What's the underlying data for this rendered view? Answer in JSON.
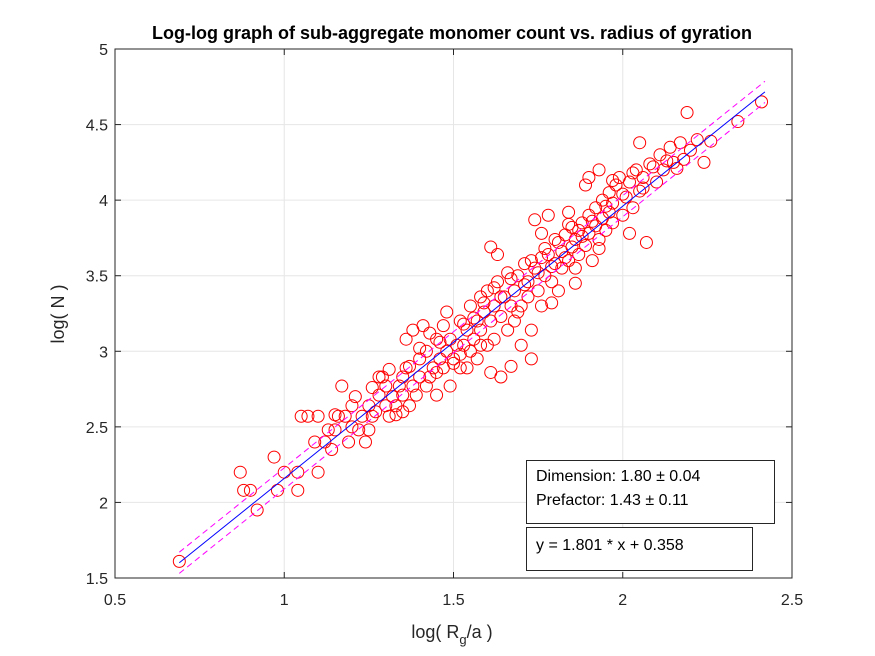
{
  "chart_data": {
    "type": "scatter",
    "title": "Log-log graph of sub-aggregate monomer count vs. radius of gyration",
    "xlabel": {
      "prefix": "log( R",
      "subscript": "g",
      "suffix": "/a )"
    },
    "ylabel": "log( N )",
    "xlim": [
      0.5,
      2.5
    ],
    "ylim": [
      1.5,
      5
    ],
    "xticks": [
      0.5,
      1,
      1.5,
      2,
      2.5
    ],
    "xtick_labels": [
      "0.5",
      "1",
      "1.5",
      "2",
      "2.5"
    ],
    "yticks": [
      1.5,
      2,
      2.5,
      3,
      3.5,
      4,
      4.5,
      5
    ],
    "ytick_labels": [
      "1.5",
      "2",
      "2.5",
      "3",
      "3.5",
      "4",
      "4.5",
      "5"
    ],
    "grid": true,
    "colors": {
      "points": "#ff0000",
      "fit": "#0000ff",
      "bounds": "#ff00ff",
      "axes": "#262626",
      "grid": "#e6e6e6"
    },
    "fit": {
      "slope": 1.801,
      "intercept": 0.358,
      "x_range": [
        0.69,
        2.42
      ],
      "bound_offset": 0.07
    },
    "series": [
      {
        "marker": "open-circle",
        "points": [
          [
            0.69,
            1.61
          ],
          [
            0.87,
            2.2
          ],
          [
            0.88,
            2.08
          ],
          [
            0.9,
            2.08
          ],
          [
            0.92,
            1.95
          ],
          [
            0.97,
            2.3
          ],
          [
            0.98,
            2.08
          ],
          [
            1.0,
            2.2
          ],
          [
            1.04,
            2.08
          ],
          [
            1.04,
            2.2
          ],
          [
            1.05,
            2.57
          ],
          [
            1.07,
            2.57
          ],
          [
            1.09,
            2.4
          ],
          [
            1.1,
            2.57
          ],
          [
            1.1,
            2.2
          ],
          [
            1.12,
            2.4
          ],
          [
            1.13,
            2.48
          ],
          [
            1.14,
            2.35
          ],
          [
            1.15,
            2.48
          ],
          [
            1.16,
            2.57
          ],
          [
            1.17,
            2.77
          ],
          [
            1.18,
            2.57
          ],
          [
            1.19,
            2.4
          ],
          [
            1.2,
            2.64
          ],
          [
            1.21,
            2.7
          ],
          [
            1.22,
            2.48
          ],
          [
            1.23,
            2.57
          ],
          [
            1.24,
            2.4
          ],
          [
            1.25,
            2.64
          ],
          [
            1.25,
            2.48
          ],
          [
            1.26,
            2.57
          ],
          [
            1.27,
            2.6
          ],
          [
            1.28,
            2.71
          ],
          [
            1.28,
            2.83
          ],
          [
            1.29,
            2.83
          ],
          [
            1.3,
            2.64
          ],
          [
            1.3,
            2.77
          ],
          [
            1.31,
            2.57
          ],
          [
            1.32,
            2.7
          ],
          [
            1.33,
            2.64
          ],
          [
            1.34,
            2.77
          ],
          [
            1.35,
            2.71
          ],
          [
            1.35,
            2.83
          ],
          [
            1.36,
            2.89
          ],
          [
            1.36,
            3.08
          ],
          [
            1.37,
            2.64
          ],
          [
            1.38,
            2.77
          ],
          [
            1.38,
            3.14
          ],
          [
            1.39,
            2.71
          ],
          [
            1.4,
            2.83
          ],
          [
            1.4,
            2.95
          ],
          [
            1.41,
            3.17
          ],
          [
            1.42,
            2.77
          ],
          [
            1.42,
            3.0
          ],
          [
            1.43,
            2.83
          ],
          [
            1.44,
            2.89
          ],
          [
            1.45,
            2.71
          ],
          [
            1.45,
            3.08
          ],
          [
            1.46,
            2.95
          ],
          [
            1.47,
            2.89
          ],
          [
            1.47,
            3.17
          ],
          [
            1.48,
            3.0
          ],
          [
            1.49,
            2.77
          ],
          [
            1.49,
            3.08
          ],
          [
            1.5,
            2.95
          ],
          [
            1.51,
            3.04
          ],
          [
            1.52,
            2.89
          ],
          [
            1.52,
            3.2
          ],
          [
            1.53,
            3.04
          ],
          [
            1.54,
            3.14
          ],
          [
            1.54,
            2.89
          ],
          [
            1.55,
            3.0
          ],
          [
            1.55,
            3.3
          ],
          [
            1.56,
            3.08
          ],
          [
            1.57,
            3.2
          ],
          [
            1.57,
            2.95
          ],
          [
            1.58,
            3.14
          ],
          [
            1.58,
            3.36
          ],
          [
            1.59,
            3.26
          ],
          [
            1.6,
            3.04
          ],
          [
            1.6,
            3.4
          ],
          [
            1.61,
            3.2
          ],
          [
            1.61,
            3.69
          ],
          [
            1.62,
            3.3
          ],
          [
            1.62,
            3.08
          ],
          [
            1.63,
            3.46
          ],
          [
            1.64,
            3.23
          ],
          [
            1.64,
            2.83
          ],
          [
            1.65,
            3.36
          ],
          [
            1.66,
            3.14
          ],
          [
            1.66,
            3.52
          ],
          [
            1.67,
            3.3
          ],
          [
            1.68,
            3.4
          ],
          [
            1.68,
            3.2
          ],
          [
            1.69,
            3.5
          ],
          [
            1.7,
            3.3
          ],
          [
            1.7,
            3.04
          ],
          [
            1.71,
            3.58
          ],
          [
            1.72,
            3.36
          ],
          [
            1.72,
            3.46
          ],
          [
            1.73,
            3.14
          ],
          [
            1.74,
            3.55
          ],
          [
            1.74,
            3.87
          ],
          [
            1.75,
            3.4
          ],
          [
            1.76,
            3.62
          ],
          [
            1.76,
            3.3
          ],
          [
            1.77,
            3.5
          ],
          [
            1.78,
            3.64
          ],
          [
            1.78,
            3.9
          ],
          [
            1.79,
            3.46
          ],
          [
            1.8,
            3.58
          ],
          [
            1.8,
            3.74
          ],
          [
            1.81,
            3.4
          ],
          [
            1.82,
            3.66
          ],
          [
            1.82,
            3.55
          ],
          [
            1.83,
            3.77
          ],
          [
            1.84,
            3.6
          ],
          [
            1.84,
            3.84
          ],
          [
            1.85,
            3.69
          ],
          [
            1.86,
            3.55
          ],
          [
            1.86,
            3.74
          ],
          [
            1.87,
            3.8
          ],
          [
            1.87,
            3.64
          ],
          [
            1.88,
            3.85
          ],
          [
            1.89,
            3.7
          ],
          [
            1.89,
            4.1
          ],
          [
            1.9,
            3.78
          ],
          [
            1.9,
            3.9
          ],
          [
            1.91,
            3.6
          ],
          [
            1.92,
            3.83
          ],
          [
            1.92,
            3.95
          ],
          [
            1.93,
            3.74
          ],
          [
            1.93,
            4.2
          ],
          [
            1.94,
            3.88
          ],
          [
            1.94,
            4.0
          ],
          [
            1.95,
            3.8
          ],
          [
            1.96,
            3.92
          ],
          [
            1.96,
            4.05
          ],
          [
            1.97,
            3.85
          ],
          [
            1.98,
            4.1
          ],
          [
            1.99,
            4.15
          ],
          [
            2.0,
            3.9
          ],
          [
            2.01,
            4.02
          ],
          [
            2.02,
            4.12
          ],
          [
            2.03,
            3.95
          ],
          [
            2.04,
            4.2
          ],
          [
            2.05,
            4.06
          ],
          [
            2.05,
            4.38
          ],
          [
            2.06,
            4.15
          ],
          [
            2.07,
            3.72
          ],
          [
            2.08,
            4.24
          ],
          [
            2.1,
            4.12
          ],
          [
            2.11,
            4.3
          ],
          [
            2.12,
            4.2
          ],
          [
            2.13,
            4.26
          ],
          [
            2.14,
            4.35
          ],
          [
            2.15,
            4.25
          ],
          [
            2.16,
            4.21
          ],
          [
            2.17,
            4.38
          ],
          [
            2.18,
            4.27
          ],
          [
            2.19,
            4.58
          ],
          [
            2.2,
            4.33
          ],
          [
            2.22,
            4.4
          ],
          [
            2.24,
            4.25
          ],
          [
            2.26,
            4.39
          ],
          [
            2.34,
            4.52
          ],
          [
            2.41,
            4.65
          ],
          [
            1.15,
            2.58
          ],
          [
            1.2,
            2.5
          ],
          [
            1.26,
            2.76
          ],
          [
            1.31,
            2.88
          ],
          [
            1.33,
            2.58
          ],
          [
            1.37,
            2.9
          ],
          [
            1.4,
            3.02
          ],
          [
            1.43,
            3.12
          ],
          [
            1.46,
            3.06
          ],
          [
            1.48,
            3.26
          ],
          [
            1.5,
            2.92
          ],
          [
            1.53,
            3.18
          ],
          [
            1.56,
            3.22
          ],
          [
            1.59,
            3.32
          ],
          [
            1.62,
            3.42
          ],
          [
            1.64,
            3.36
          ],
          [
            1.67,
            3.48
          ],
          [
            1.69,
            3.26
          ],
          [
            1.71,
            3.44
          ],
          [
            1.73,
            3.6
          ],
          [
            1.75,
            3.52
          ],
          [
            1.77,
            3.68
          ],
          [
            1.79,
            3.56
          ],
          [
            1.81,
            3.72
          ],
          [
            1.83,
            3.62
          ],
          [
            1.85,
            3.82
          ],
          [
            1.88,
            3.76
          ],
          [
            1.91,
            3.86
          ],
          [
            1.93,
            3.68
          ],
          [
            1.95,
            3.96
          ],
          [
            1.97,
            3.98
          ],
          [
            2.0,
            4.04
          ],
          [
            2.03,
            4.18
          ],
          [
            2.06,
            4.08
          ],
          [
            2.09,
            4.22
          ],
          [
            1.61,
            2.86
          ],
          [
            1.67,
            2.9
          ],
          [
            1.73,
            2.95
          ],
          [
            1.79,
            3.32
          ],
          [
            1.86,
            3.45
          ],
          [
            1.97,
            4.13
          ],
          [
            2.02,
            3.78
          ],
          [
            1.9,
            4.15
          ],
          [
            1.84,
            3.92
          ],
          [
            1.76,
            3.78
          ],
          [
            1.63,
            3.64
          ],
          [
            1.58,
            3.04
          ],
          [
            1.52,
            2.98
          ],
          [
            1.45,
            2.86
          ],
          [
            1.35,
            2.6
          ]
        ]
      }
    ],
    "annotations": {
      "stats_lines": [
        "Dimension: 1.80 ± 0.04",
        "Prefactor: 1.43 ± 0.11"
      ],
      "equation": "y = 1.801 * x + 0.358"
    }
  }
}
